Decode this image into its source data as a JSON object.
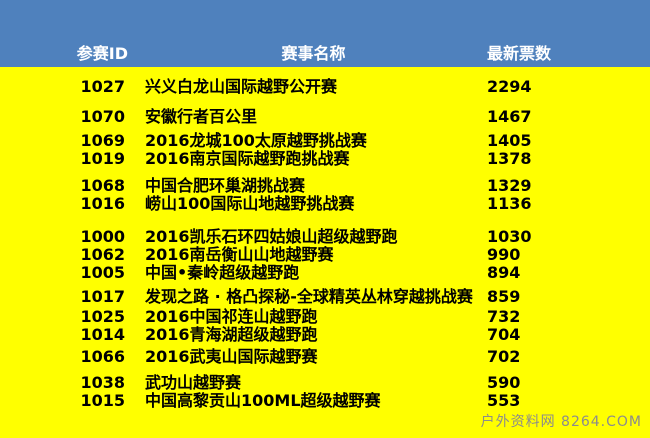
{
  "chart_data": {
    "type": "table",
    "columns": [
      "参赛ID",
      "赛事名称",
      "最新票数"
    ],
    "rows": [
      {
        "id": "1027",
        "name": "兴义白龙山国际越野公开赛",
        "votes": "2294"
      },
      {
        "id": "1070",
        "name": "安徽行者百公里",
        "votes": "1467"
      },
      {
        "id": "1069",
        "name": "2016龙城100太原越野挑战赛",
        "votes": "1405"
      },
      {
        "id": "1019",
        "name": "2016南京国际越野跑挑战赛",
        "votes": "1378"
      },
      {
        "id": "1068",
        "name": "中国合肥环巢湖挑战赛",
        "votes": "1329"
      },
      {
        "id": "1016",
        "name": "崂山100国际山地越野挑战赛",
        "votes": "1136"
      },
      {
        "id": "1000",
        "name": "2016凯乐石环四姑娘山超级越野跑",
        "votes": "1030"
      },
      {
        "id": "1062",
        "name": "2016南岳衡山山地越野赛",
        "votes": "990"
      },
      {
        "id": "1005",
        "name": "中国•秦岭超级越野跑",
        "votes": "894"
      },
      {
        "id": "1017",
        "name": "发现之路 · 格凸探秘-全球精英丛林穿越挑战赛",
        "votes": "859"
      },
      {
        "id": "1025",
        "name": "2016中国祁连山越野跑",
        "votes": "732"
      },
      {
        "id": "1014",
        "name": "2016青海湖超级越野跑",
        "votes": "704"
      },
      {
        "id": "1066",
        "name": "2016武夷山国际越野赛",
        "votes": "702"
      },
      {
        "id": "1038",
        "name": "武功山越野赛",
        "votes": "590"
      },
      {
        "id": "1015",
        "name": "中国高黎贡山100ML超级越野赛",
        "votes": "553"
      }
    ]
  },
  "watermark": "户外资料网 8264.COM",
  "colors": {
    "header_bg": "#4f81bd",
    "body_bg": "#ffff00",
    "header_text": "#ffffff",
    "row_text": "#000000",
    "watermark_text": "#8c8c8c"
  }
}
